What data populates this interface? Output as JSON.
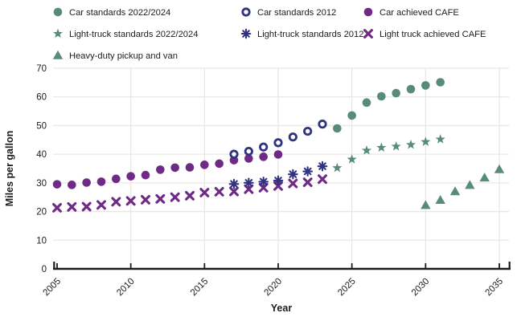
{
  "chart_data": {
    "type": "scatter",
    "title": "",
    "xlabel": "Year",
    "ylabel": "Miles per gallon",
    "xlim": [
      2005,
      2035
    ],
    "ylim": [
      0,
      70
    ],
    "x_ticks": [
      2005,
      2010,
      2015,
      2020,
      2025,
      2030,
      2035
    ],
    "y_ticks": [
      0,
      10,
      20,
      30,
      40,
      50,
      60,
      70
    ],
    "grid": true,
    "legend_position": "top",
    "colors": {
      "teal": "#578b7c",
      "navy": "#2f3380",
      "purple": "#6e2a84",
      "grid": "#e8e8e3",
      "axis": "#1c1c1c",
      "text": "#1c1c1c"
    },
    "series": [
      {
        "name": "Car standards 2022/2024",
        "marker": "circle",
        "color": "teal",
        "points": [
          [
            2024,
            49.0
          ],
          [
            2025,
            53.5
          ],
          [
            2026,
            58.0
          ],
          [
            2027,
            60.2
          ],
          [
            2028,
            61.3
          ],
          [
            2029,
            62.7
          ],
          [
            2030,
            64.0
          ],
          [
            2031,
            65.1
          ]
        ]
      },
      {
        "name": "Car standards 2012",
        "marker": "open-circle",
        "color": "navy",
        "points": [
          [
            2017,
            40.0
          ],
          [
            2018,
            41.0
          ],
          [
            2019,
            42.5
          ],
          [
            2020,
            44.0
          ],
          [
            2021,
            46.0
          ],
          [
            2022,
            48.0
          ],
          [
            2023,
            50.5
          ]
        ]
      },
      {
        "name": "Car achieved CAFE",
        "marker": "circle",
        "color": "purple",
        "points": [
          [
            2005,
            29.5
          ],
          [
            2006,
            29.3
          ],
          [
            2007,
            30.1
          ],
          [
            2008,
            30.4
          ],
          [
            2009,
            31.4
          ],
          [
            2010,
            32.3
          ],
          [
            2011,
            32.7
          ],
          [
            2012,
            34.6
          ],
          [
            2013,
            35.3
          ],
          [
            2014,
            35.4
          ],
          [
            2015,
            36.3
          ],
          [
            2016,
            36.7
          ],
          [
            2017,
            37.9
          ],
          [
            2018,
            38.5
          ],
          [
            2019,
            39.1
          ],
          [
            2020,
            39.9
          ]
        ]
      },
      {
        "name": "Light-truck standards 2022/2024",
        "marker": "star",
        "color": "teal",
        "points": [
          [
            2024,
            35.2
          ],
          [
            2025,
            38.2
          ],
          [
            2026,
            41.3
          ],
          [
            2027,
            42.3
          ],
          [
            2028,
            42.7
          ],
          [
            2029,
            43.3
          ],
          [
            2030,
            44.3
          ],
          [
            2031,
            45.2
          ]
        ]
      },
      {
        "name": "Light-truck standards 2012",
        "marker": "asterisk",
        "color": "navy",
        "points": [
          [
            2017,
            29.6
          ],
          [
            2018,
            30.0
          ],
          [
            2019,
            30.4
          ],
          [
            2020,
            30.8
          ],
          [
            2021,
            33.0
          ],
          [
            2022,
            34.0
          ],
          [
            2023,
            35.8
          ]
        ]
      },
      {
        "name": "Light truck achieved CAFE",
        "marker": "x",
        "color": "purple",
        "points": [
          [
            2005,
            21.3
          ],
          [
            2006,
            21.6
          ],
          [
            2007,
            21.7
          ],
          [
            2008,
            22.3
          ],
          [
            2009,
            23.4
          ],
          [
            2010,
            23.7
          ],
          [
            2011,
            24.1
          ],
          [
            2012,
            24.4
          ],
          [
            2013,
            25.0
          ],
          [
            2014,
            25.5
          ],
          [
            2015,
            26.6
          ],
          [
            2016,
            26.9
          ],
          [
            2017,
            27.0
          ],
          [
            2018,
            27.8
          ],
          [
            2019,
            28.3
          ],
          [
            2020,
            28.9
          ],
          [
            2021,
            29.8
          ],
          [
            2022,
            30.2
          ],
          [
            2023,
            31.3
          ]
        ]
      },
      {
        "name": "Heavy-duty pickup and van",
        "marker": "triangle",
        "color": "teal",
        "points": [
          [
            2030,
            22.2
          ],
          [
            2031,
            24.0
          ],
          [
            2032,
            27.0
          ],
          [
            2033,
            29.2
          ],
          [
            2034,
            31.8
          ],
          [
            2035,
            34.7
          ]
        ]
      }
    ],
    "legend_rows": [
      [
        0,
        1,
        2
      ],
      [
        3,
        4,
        5
      ],
      [
        6
      ]
    ]
  }
}
